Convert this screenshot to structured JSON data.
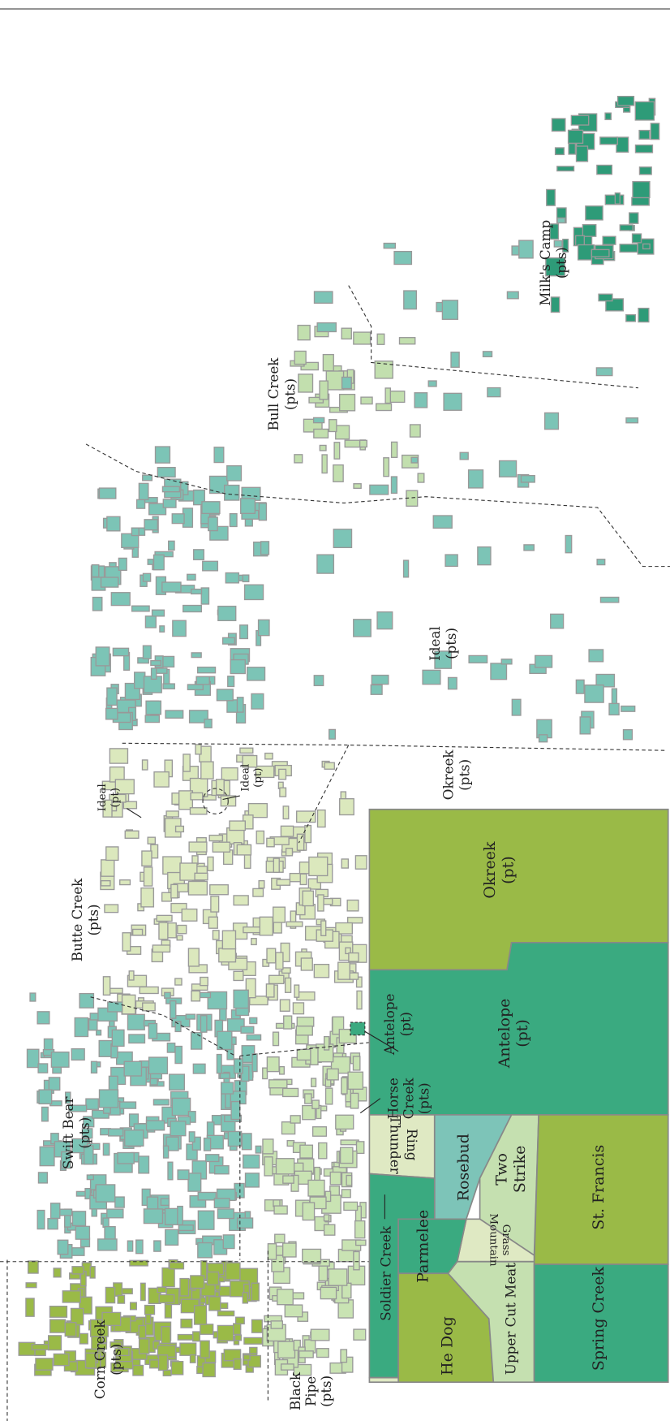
{
  "labels": [
    {
      "lines": [
        "Corn Creek",
        "(pts)"
      ]
    },
    {
      "lines": [
        "Swift Bear",
        "(pts)"
      ]
    },
    {
      "lines": [
        "Butte Creek",
        "(pts)"
      ]
    },
    {
      "lines": [
        "Ideal",
        "(pt)"
      ]
    },
    {
      "lines": [
        "Ideal",
        "(pt)"
      ]
    },
    {
      "lines": [
        "Bull Creek",
        "(pts)"
      ]
    },
    {
      "lines": [
        "Milk's Camp",
        "(pts)"
      ]
    },
    {
      "lines": [
        "Ideal",
        "(pts)"
      ]
    },
    {
      "lines": [
        "Okreek",
        "(pts)"
      ]
    },
    {
      "lines": [
        "Okreek",
        "(pt)"
      ]
    },
    {
      "lines": [
        "Antelope",
        "(pt)"
      ]
    },
    {
      "lines": [
        "Antelope",
        "(pt)"
      ]
    },
    {
      "lines": [
        "Horse",
        "Creek",
        "(pts)"
      ]
    },
    {
      "lines": [
        "Ring",
        "Thunder"
      ]
    },
    {
      "lines": [
        "Rosebud"
      ]
    },
    {
      "lines": [
        "Two",
        "Strike"
      ]
    },
    {
      "lines": [
        "Grass",
        "Mountain"
      ]
    },
    {
      "lines": [
        "St. Francis"
      ]
    },
    {
      "lines": [
        "Soldier Creek"
      ]
    },
    {
      "lines": [
        "Parmelee"
      ]
    },
    {
      "lines": [
        "He Dog"
      ]
    },
    {
      "lines": [
        "Upper Cut Meat"
      ]
    },
    {
      "lines": [
        "Spring Creek"
      ]
    },
    {
      "lines": [
        "Black",
        "Pipe",
        "(pts)"
      ]
    }
  ]
}
